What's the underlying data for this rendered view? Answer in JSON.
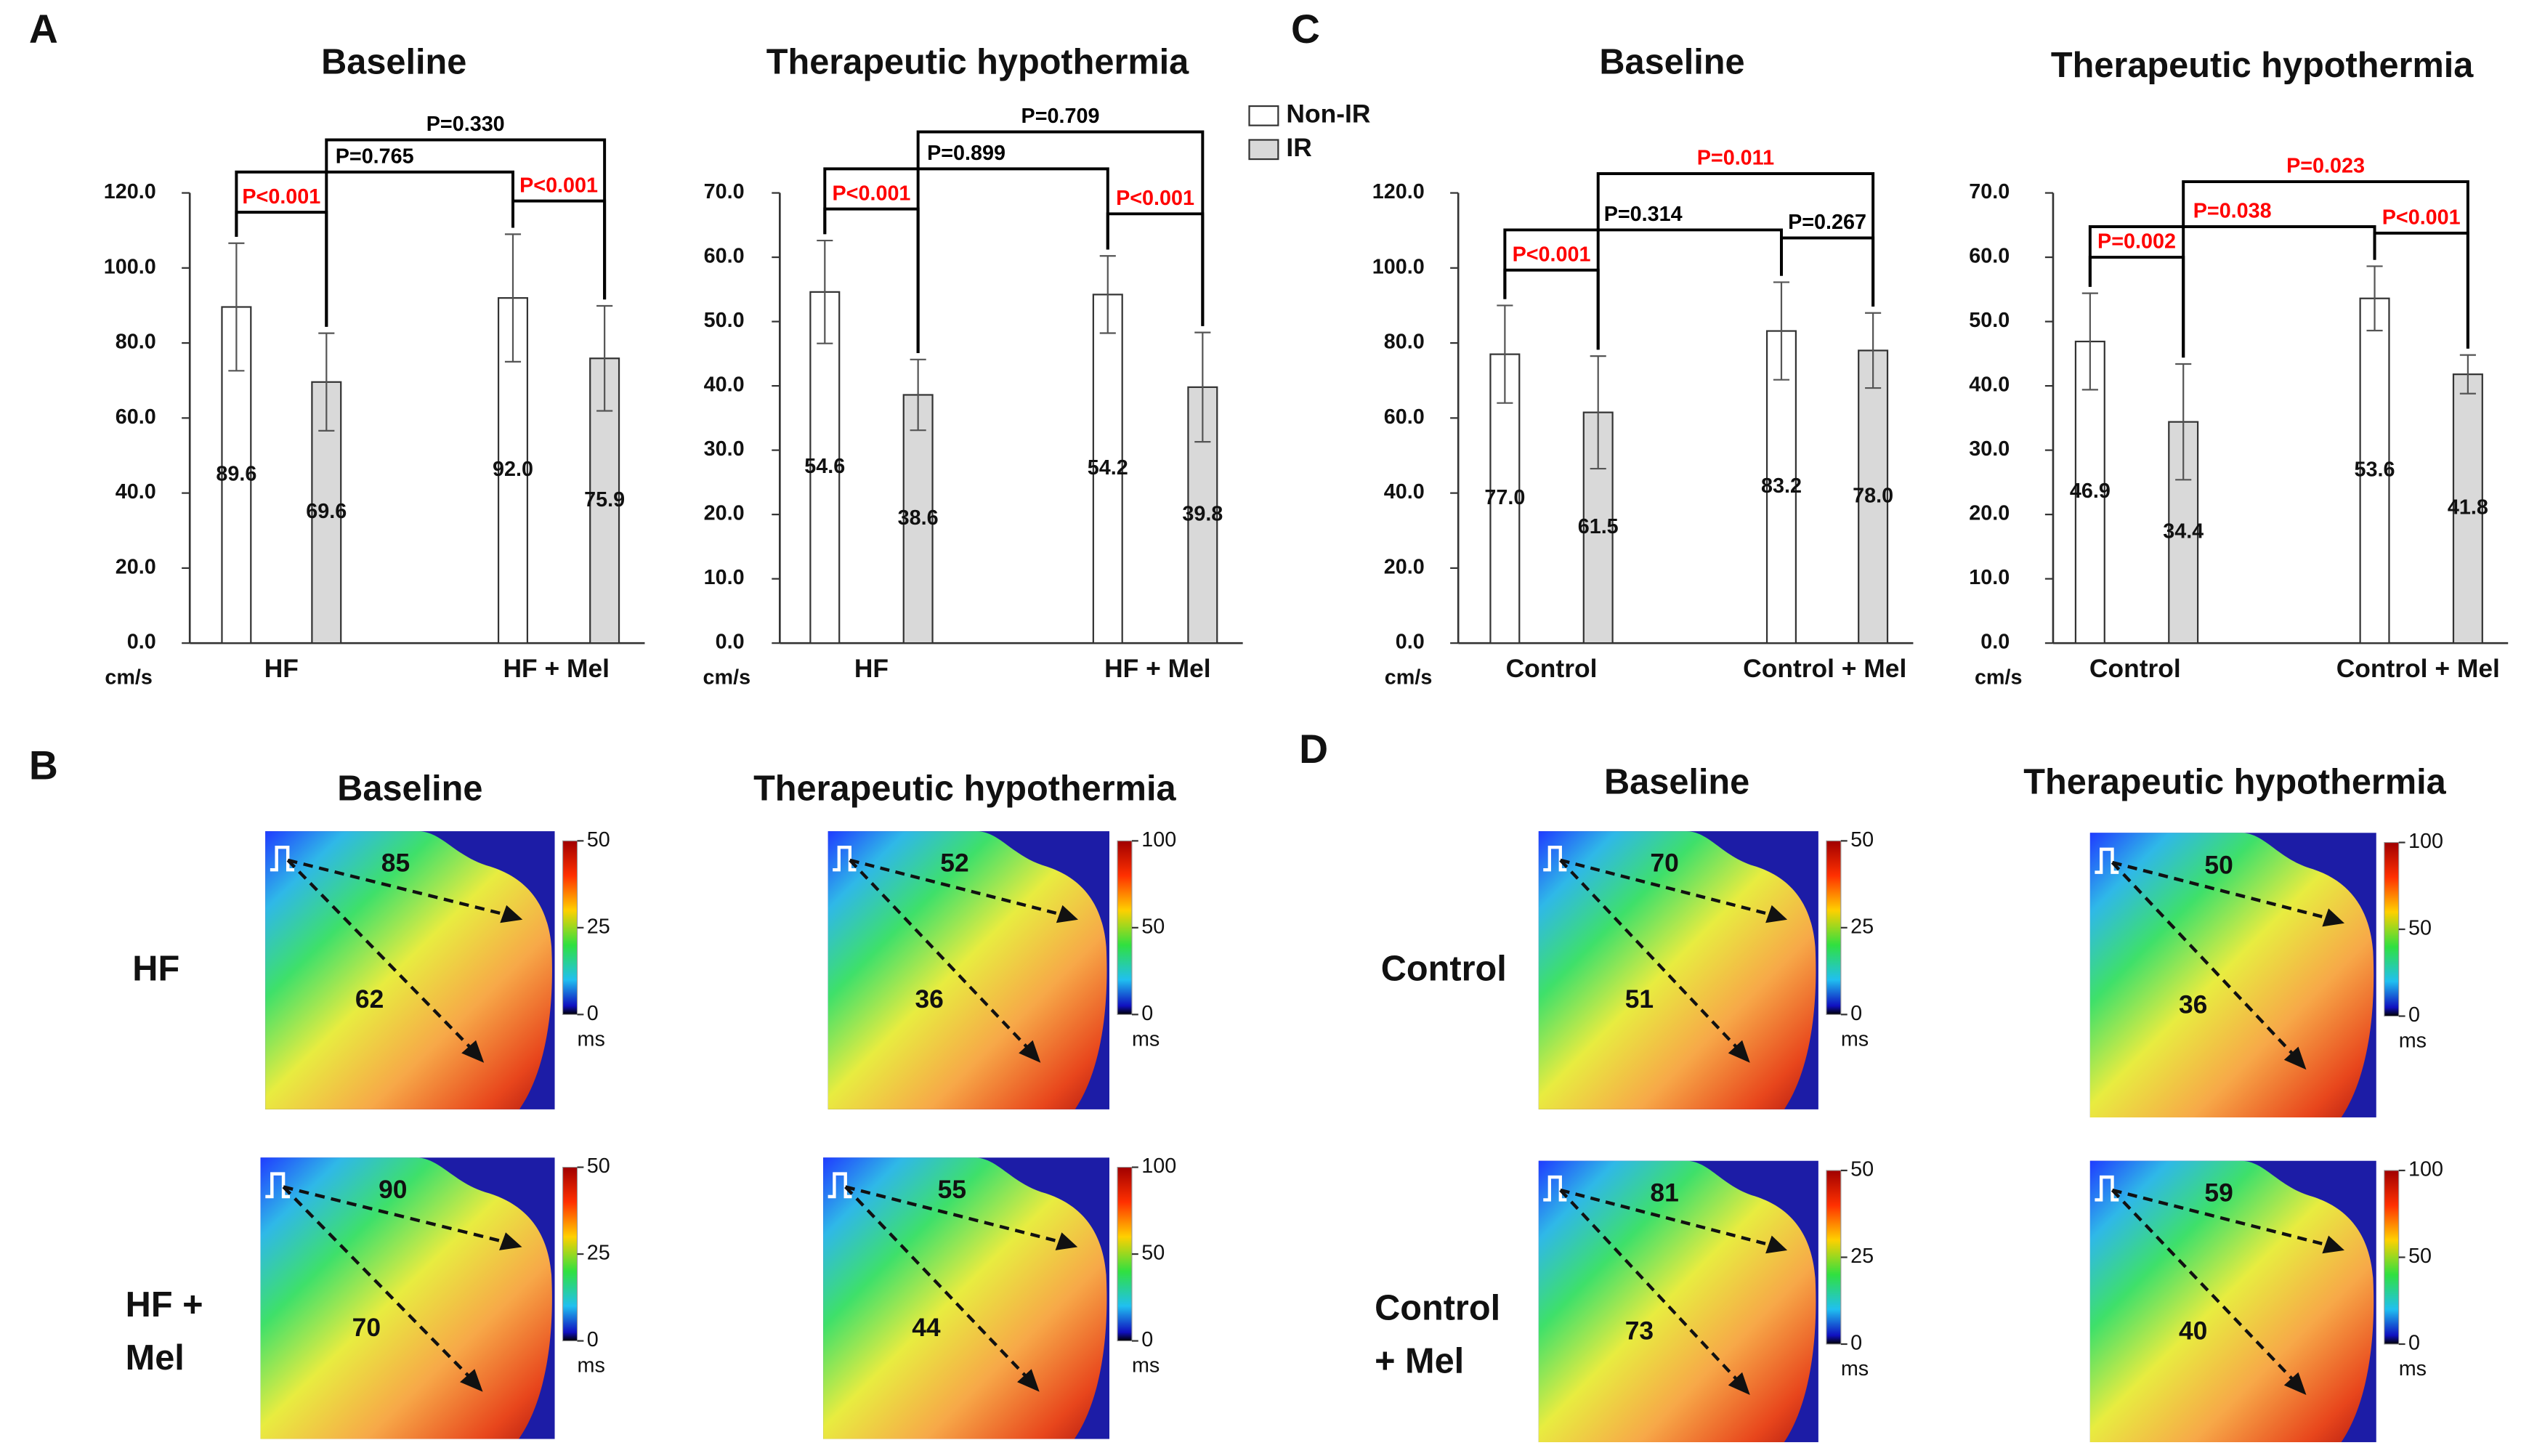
{
  "panels": [
    "A",
    "B",
    "C",
    "D"
  ],
  "chart_data": [
    {
      "type": "bar",
      "title": "Baseline",
      "y_unit": "cm/s",
      "categories": [
        "HF",
        "HF + Mel"
      ],
      "series": [
        {
          "color": "#ffffff",
          "values": [
            89.6,
            92.0
          ],
          "value_labels": [
            "89.6",
            "92.0"
          ],
          "errors": [
            17,
            17
          ]
        },
        {
          "color": "#d9d9d9",
          "values": [
            69.6,
            75.9
          ],
          "value_labels": [
            "69.6",
            "75.9"
          ],
          "errors": [
            13,
            14
          ]
        }
      ],
      "ylim": [
        0,
        120
      ],
      "yticks": [
        {
          "value": 0,
          "label": "0.0"
        },
        {
          "value": 20,
          "label": "20.0"
        },
        {
          "value": 40,
          "label": "40.0"
        },
        {
          "value": 60,
          "label": "60.0"
        },
        {
          "value": 80,
          "label": "80.0"
        },
        {
          "value": 100,
          "label": "100.0"
        },
        {
          "value": 120,
          "label": "120.0"
        }
      ],
      "annotations": [
        {
          "text": "P<0.001",
          "color": "#ff0000"
        },
        {
          "text": "P<0.001",
          "color": "#ff0000"
        },
        {
          "text": "P=0.765",
          "color": "#000000"
        },
        {
          "text": "P=0.330",
          "color": "#000000"
        }
      ]
    },
    {
      "type": "bar",
      "title": "Therapeutic hypothermia",
      "y_unit": "cm/s",
      "categories": [
        "HF",
        "HF + Mel"
      ],
      "series": [
        {
          "name": "Non-IR",
          "color": "#ffffff",
          "values": [
            54.6,
            54.2
          ],
          "value_labels": [
            "54.6",
            "54.2"
          ],
          "errors": [
            8,
            6
          ]
        },
        {
          "name": "IR",
          "color": "#d9d9d9",
          "values": [
            38.6,
            39.8
          ],
          "value_labels": [
            "38.6",
            "39.8"
          ],
          "errors": [
            5.5,
            8.5
          ]
        }
      ],
      "ylim": [
        0,
        70
      ],
      "yticks": [
        {
          "value": 0,
          "label": "0.0"
        },
        {
          "value": 10,
          "label": "10.0"
        },
        {
          "value": 20,
          "label": "20.0"
        },
        {
          "value": 30,
          "label": "30.0"
        },
        {
          "value": 40,
          "label": "40.0"
        },
        {
          "value": 50,
          "label": "50.0"
        },
        {
          "value": 60,
          "label": "60.0"
        },
        {
          "value": 70,
          "label": "70.0"
        }
      ],
      "annotations": [
        {
          "text": "P<0.001",
          "color": "#ff0000"
        },
        {
          "text": "P<0.001",
          "color": "#ff0000"
        },
        {
          "text": "P=0.899",
          "color": "#000000"
        },
        {
          "text": "P=0.709",
          "color": "#000000"
        }
      ]
    },
    {
      "type": "bar",
      "title": "Baseline",
      "y_unit": "cm/s",
      "categories": [
        "Control",
        "Control + Mel"
      ],
      "series": [
        {
          "color": "#ffffff",
          "values": [
            77.0,
            83.2
          ],
          "value_labels": [
            "77.0",
            "83.2"
          ],
          "errors": [
            13,
            13
          ]
        },
        {
          "color": "#d9d9d9",
          "values": [
            61.5,
            78.0
          ],
          "value_labels": [
            "61.5",
            "78.0"
          ],
          "errors": [
            15,
            10
          ]
        }
      ],
      "ylim": [
        0,
        120
      ],
      "yticks": [
        {
          "value": 0,
          "label": "0.0"
        },
        {
          "value": 20,
          "label": "20.0"
        },
        {
          "value": 40,
          "label": "40.0"
        },
        {
          "value": 60,
          "label": "60.0"
        },
        {
          "value": 80,
          "label": "80.0"
        },
        {
          "value": 100,
          "label": "100.0"
        },
        {
          "value": 120,
          "label": "120.0"
        }
      ],
      "annotations": [
        {
          "text": "P<0.001",
          "color": "#ff0000"
        },
        {
          "text": "P=0.267",
          "color": "#000000"
        },
        {
          "text": "P=0.314",
          "color": "#000000"
        },
        {
          "text": "P=0.011",
          "color": "#ff0000"
        }
      ]
    },
    {
      "type": "bar",
      "title": "Therapeutic hypothermia",
      "y_unit": "cm/s",
      "categories": [
        "Control",
        "Control + Mel"
      ],
      "series": [
        {
          "color": "#ffffff",
          "values": [
            46.9,
            53.6
          ],
          "value_labels": [
            "46.9",
            "53.6"
          ],
          "errors": [
            7.5,
            5
          ]
        },
        {
          "color": "#d9d9d9",
          "values": [
            34.4,
            41.8
          ],
          "value_labels": [
            "34.4",
            "41.8"
          ],
          "errors": [
            9,
            3
          ]
        }
      ],
      "ylim": [
        0,
        70
      ],
      "yticks": [
        {
          "value": 0,
          "label": "0.0"
        },
        {
          "value": 10,
          "label": "10.0"
        },
        {
          "value": 20,
          "label": "20.0"
        },
        {
          "value": 30,
          "label": "30.0"
        },
        {
          "value": 40,
          "label": "40.0"
        },
        {
          "value": 50,
          "label": "50.0"
        },
        {
          "value": 60,
          "label": "60.0"
        },
        {
          "value": 70,
          "label": "70.0"
        }
      ],
      "annotations": [
        {
          "text": "P=0.002",
          "color": "#ff0000"
        },
        {
          "text": "P<0.001",
          "color": "#ff0000"
        },
        {
          "text": "P=0.038",
          "color": "#ff0000"
        },
        {
          "text": "P=0.023",
          "color": "#ff0000"
        }
      ]
    }
  ],
  "maps": [
    {
      "titles": [
        "Baseline",
        "Therapeutic hypothermia"
      ],
      "rows": [
        {
          "label": [
            "HF"
          ],
          "cells": [
            {
              "numbers": [
                85,
                62
              ],
              "scale": [
                50,
                25,
                0
              ],
              "unit": "ms"
            },
            {
              "numbers": [
                52,
                36
              ],
              "scale": [
                100,
                50,
                0
              ],
              "unit": "ms"
            }
          ]
        },
        {
          "label": [
            "HF +",
            "Mel"
          ],
          "cells": [
            {
              "numbers": [
                90,
                70
              ],
              "scale": [
                50,
                25,
                0
              ],
              "unit": "ms"
            },
            {
              "numbers": [
                55,
                44
              ],
              "scale": [
                100,
                50,
                0
              ],
              "unit": "ms"
            }
          ]
        }
      ]
    },
    {
      "titles": [
        "Baseline",
        "Therapeutic hypothermia"
      ],
      "rows": [
        {
          "label": [
            "Control"
          ],
          "cells": [
            {
              "numbers": [
                70,
                51
              ],
              "scale": [
                50,
                25,
                0
              ],
              "unit": "ms"
            },
            {
              "numbers": [
                50,
                36
              ],
              "scale": [
                100,
                50,
                0
              ],
              "unit": "ms"
            }
          ]
        },
        {
          "label": [
            "Control",
            "+ Mel"
          ],
          "cells": [
            {
              "numbers": [
                81,
                73
              ],
              "scale": [
                50,
                25,
                0
              ],
              "unit": "ms"
            },
            {
              "numbers": [
                59,
                40
              ],
              "scale": [
                100,
                50,
                0
              ],
              "unit": "ms"
            }
          ]
        }
      ]
    }
  ]
}
